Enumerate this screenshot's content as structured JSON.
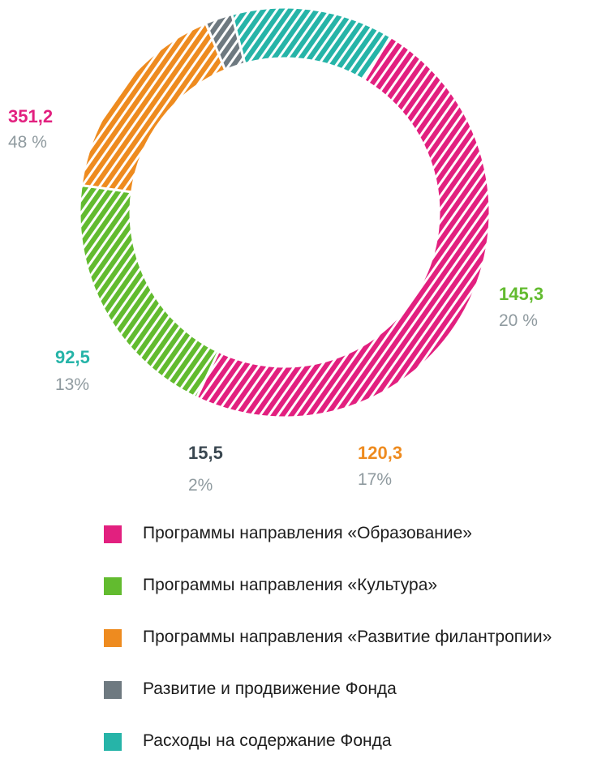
{
  "chart_data": {
    "type": "pie",
    "title": "",
    "slices": [
      {
        "label": "Программы направления «Образование»",
        "value": 351.2,
        "value_text": "351,2",
        "percent_text": "48 %",
        "color": "#e2207f"
      },
      {
        "label": "Программы направления «Культура»",
        "value": 145.3,
        "value_text": "145,3",
        "percent_text": "20 %",
        "color": "#62bb2f"
      },
      {
        "label": "Программы направления «Развитие филантропии»",
        "value": 120.3,
        "value_text": "120,3",
        "percent_text": "17%",
        "color": "#ee8b1f"
      },
      {
        "label": "Развитие и продвижение Фонда",
        "value": 15.5,
        "value_text": "15,5",
        "percent_text": "2%",
        "color": "#6e7980"
      },
      {
        "label": "Расходы на содержание Фонда",
        "value": 92.5,
        "value_text": "92,5",
        "percent_text": "13%",
        "color": "#26b4a8"
      }
    ],
    "style": "donut, diagonal hatched fill",
    "legend_position": "bottom"
  }
}
